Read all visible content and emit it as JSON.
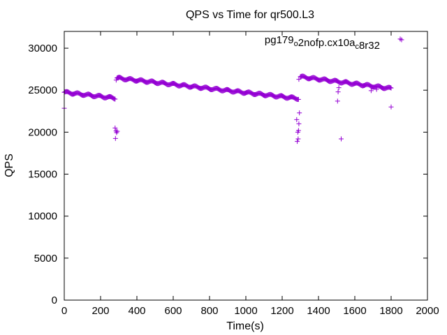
{
  "chart_data": {
    "type": "scatter",
    "title": "QPS vs Time for qr500.L3",
    "xlabel": "Time(s)",
    "ylabel": "QPS",
    "xlim": [
      0,
      2000
    ],
    "ylim": [
      0,
      32000
    ],
    "xticks": [
      "0",
      "200",
      "400",
      "600",
      "800",
      "1000",
      "1200",
      "1400",
      "1600",
      "1800",
      "2000"
    ],
    "yticks": [
      "0",
      "5000",
      "10000",
      "15000",
      "20000",
      "25000",
      "30000"
    ],
    "grid": false,
    "legend_position": "top-right",
    "marker": "plus",
    "series": [
      {
        "name": "pg179_o2nofp.cx10a_c8r32",
        "color": "#9400d3",
        "segments": [
          {
            "x_start": 0,
            "x_end": 280,
            "y_start": 24750,
            "y_end": 24050,
            "step": 4
          },
          {
            "x_start": 290,
            "x_end": 1290,
            "y_start": 26450,
            "y_end": 24000,
            "step": 4
          },
          {
            "x_start": 1300,
            "x_end": 1800,
            "y_start": 26600,
            "y_end": 25200,
            "step": 4
          }
        ],
        "points": [
          [
            0,
            22850
          ],
          [
            280,
            20500
          ],
          [
            282,
            19250
          ],
          [
            285,
            20150
          ],
          [
            288,
            19950
          ],
          [
            292,
            20100
          ],
          [
            286,
            26200
          ],
          [
            1280,
            21500
          ],
          [
            1283,
            18900
          ],
          [
            1286,
            20000
          ],
          [
            1288,
            19200
          ],
          [
            1290,
            20200
          ],
          [
            1292,
            21000
          ],
          [
            1295,
            22300
          ],
          [
            1292,
            26300
          ],
          [
            1505,
            23700
          ],
          [
            1508,
            24800
          ],
          [
            1512,
            25300
          ],
          [
            1525,
            19200
          ],
          [
            1690,
            24950
          ],
          [
            1720,
            25100
          ],
          [
            1800,
            23000
          ],
          [
            1850,
            31100
          ]
        ]
      }
    ]
  }
}
